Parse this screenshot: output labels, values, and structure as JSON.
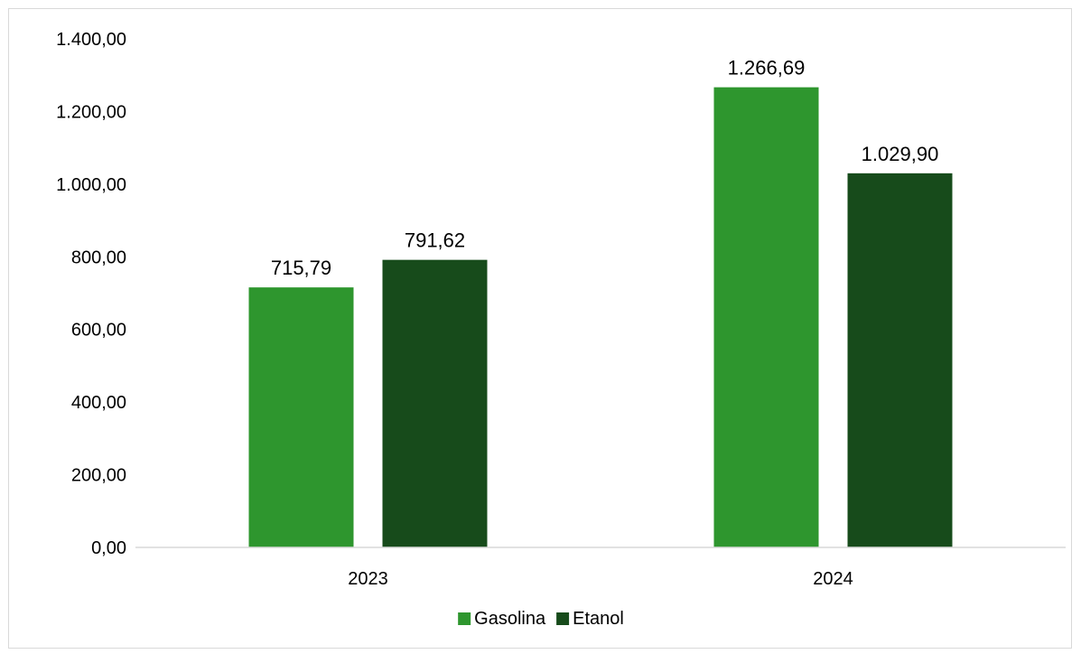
{
  "chart_data": {
    "type": "bar",
    "title": "",
    "xlabel": "",
    "ylabel": "",
    "categories": [
      "2023",
      "2024"
    ],
    "series": [
      {
        "name": "Gasolina",
        "color": "#2e962e",
        "values": [
          715.79,
          1266.69
        ],
        "labels": [
          "715,79",
          "1.266,69"
        ]
      },
      {
        "name": "Etanol",
        "color": "#174b1b",
        "values": [
          791.62,
          1029.9
        ],
        "labels": [
          "791,62",
          "1.029,90"
        ]
      }
    ],
    "ylim": [
      0,
      1400
    ],
    "yticks": [
      0,
      200,
      400,
      600,
      800,
      1000,
      1200,
      1400
    ],
    "ytick_labels": [
      "0,00",
      "200,00",
      "400,00",
      "600,00",
      "800,00",
      "1.000,00",
      "1.200,00",
      "1.400,00"
    ],
    "grid": false,
    "legend_position": "bottom-center",
    "axis_color": "#d9d9d9"
  }
}
